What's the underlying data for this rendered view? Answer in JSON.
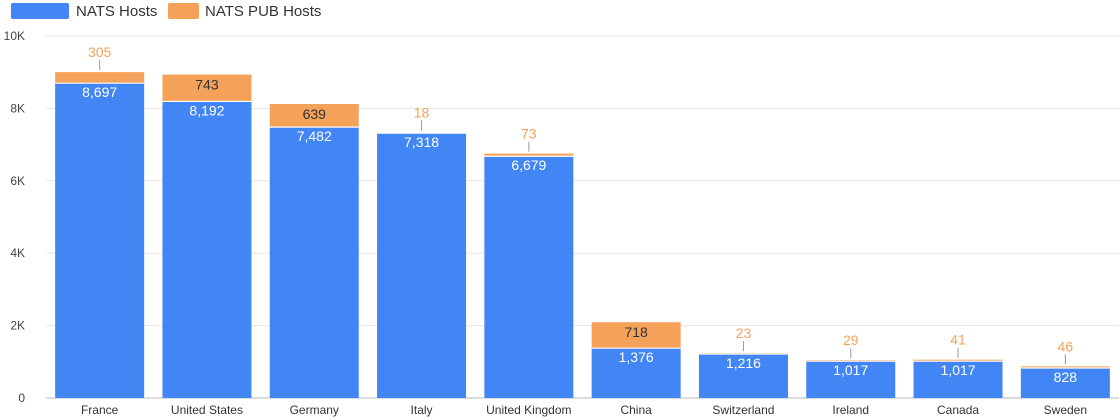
{
  "chart_data": {
    "type": "bar",
    "stacked": true,
    "categories": [
      "France",
      "United States",
      "Germany",
      "Italy",
      "United Kingdom",
      "China",
      "Switzerland",
      "Ireland",
      "Canada",
      "Sweden"
    ],
    "series": [
      {
        "name": "NATS Hosts",
        "color": "#4285f4",
        "values": [
          8697,
          8192,
          7482,
          7318,
          6679,
          1376,
          1216,
          1017,
          1017,
          828
        ],
        "labels": [
          "8,697",
          "8,192",
          "7,482",
          "7,318",
          "6,679",
          "1,376",
          "1,216",
          "1,017",
          "1,017",
          "828"
        ]
      },
      {
        "name": "NATS PUB Hosts",
        "color": "#f4a259",
        "values": [
          305,
          743,
          639,
          18,
          73,
          718,
          23,
          29,
          41,
          46
        ],
        "labels": [
          "305",
          "743",
          "639",
          "18",
          "73",
          "718",
          "23",
          "29",
          "41",
          "46"
        ]
      }
    ],
    "ylim": [
      0,
      10000
    ],
    "yticks": [
      0,
      2000,
      4000,
      6000,
      8000,
      10000
    ],
    "ytick_labels": [
      "0",
      "2K",
      "4K",
      "6K",
      "8K",
      "10K"
    ],
    "grid": true,
    "legend_position": "top-left"
  }
}
